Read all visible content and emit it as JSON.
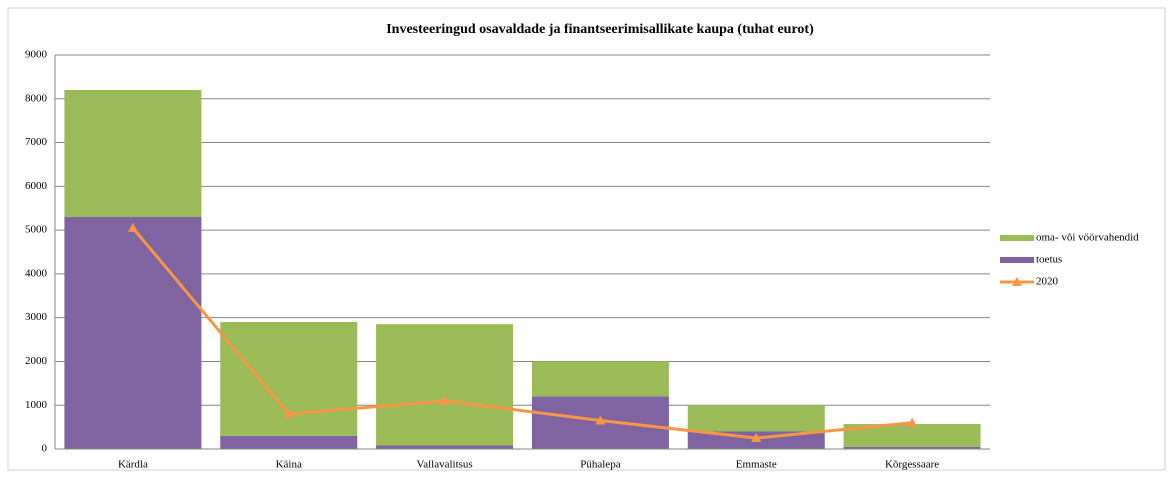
{
  "chart_data": {
    "type": "stacked_bar_line",
    "title": "Investeeringud osavaldade ja finantseerimisallikate kaupa (tuhat eurot)",
    "categories": [
      "Kärdla",
      "Käina",
      "Vallavalitsus",
      "Pühalepa",
      "Emmaste",
      "Kõrgessaare"
    ],
    "series": [
      {
        "name": "toetus",
        "color": "#8064a2",
        "kind": "bar",
        "values": [
          5300,
          300,
          80,
          1200,
          400,
          50
        ]
      },
      {
        "name": "oma- või vöörvahendid",
        "color": "#9bbb59",
        "kind": "bar",
        "values": [
          2900,
          2600,
          2770,
          800,
          600,
          520
        ]
      },
      {
        "name": "2020",
        "color": "#f79646",
        "kind": "line",
        "values": [
          5050,
          800,
          1100,
          650,
          250,
          600
        ]
      }
    ],
    "ylim": [
      0,
      9000
    ],
    "yticks": [
      0,
      1000,
      2000,
      3000,
      4000,
      5000,
      6000,
      7000,
      8000,
      9000
    ],
    "grid": true,
    "legend": "right"
  }
}
